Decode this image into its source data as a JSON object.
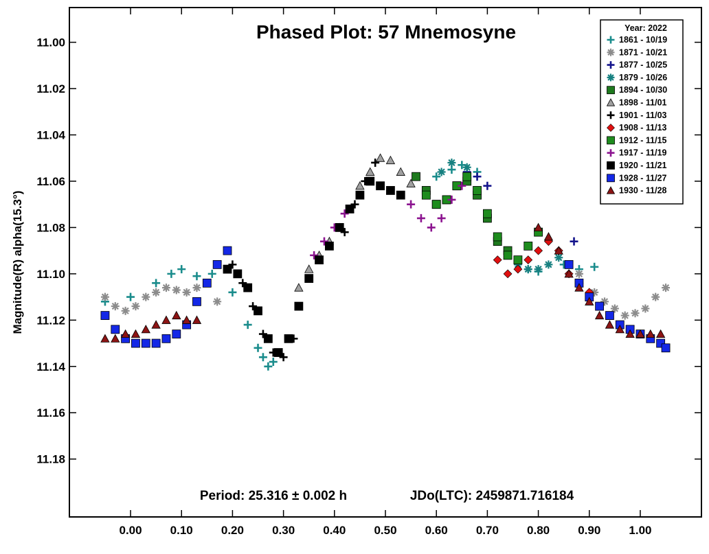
{
  "chart_data": {
    "type": "scatter",
    "title": "Phased Plot: 57 Mnemosyne",
    "ylabel": "Magnitude(R) alpha(15.3°)",
    "xlabel": "",
    "footer": {
      "period": "Period: 25.316 ± 0.002 h",
      "epoch": "JDo(LTC): 2459871.716184"
    },
    "xlim": [
      -0.12,
      1.12
    ],
    "ylim": [
      11.205,
      10.985
    ],
    "y_inverted": true,
    "x_ticks": [
      "0.00",
      "0.10",
      "0.20",
      "0.30",
      "0.40",
      "0.50",
      "0.60",
      "0.70",
      "0.80",
      "0.90",
      "1.00"
    ],
    "x_tick_values": [
      0,
      0.1,
      0.2,
      0.3,
      0.4,
      0.5,
      0.6,
      0.7,
      0.8,
      0.9,
      1.0
    ],
    "y_ticks": [
      "11.00",
      "11.02",
      "11.04",
      "11.06",
      "11.08",
      "11.10",
      "11.12",
      "11.14",
      "11.16",
      "11.18"
    ],
    "y_tick_values": [
      11.0,
      11.02,
      11.04,
      11.06,
      11.08,
      11.1,
      11.12,
      11.14,
      11.16,
      11.18
    ],
    "grid": false,
    "legend": {
      "placement": "top-right",
      "title": "Year: 2022"
    },
    "series": [
      {
        "name": "1861 - 10/19",
        "marker": "plus",
        "color": "#1a8c8c",
        "x": [
          -0.05,
          0.0,
          0.05,
          0.08,
          0.1,
          0.13,
          0.16,
          0.2,
          0.23,
          0.25,
          0.26,
          0.27,
          0.28,
          0.6,
          0.63,
          0.65,
          0.68,
          0.74,
          0.78,
          0.8,
          0.85,
          0.88,
          0.91
        ],
        "y": [
          11.112,
          11.11,
          11.104,
          11.1,
          11.098,
          11.101,
          11.1,
          11.108,
          11.122,
          11.132,
          11.136,
          11.14,
          11.138,
          11.058,
          11.055,
          11.053,
          11.056,
          11.09,
          11.098,
          11.099,
          11.096,
          11.098,
          11.097
        ]
      },
      {
        "name": "1871 - 10/21",
        "marker": "asterisk",
        "color": "#8c8c8c",
        "x": [
          -0.05,
          -0.03,
          -0.01,
          0.01,
          0.03,
          0.05,
          0.07,
          0.09,
          0.11,
          0.13,
          0.15,
          0.17,
          0.88,
          0.91,
          0.93,
          0.95,
          0.97,
          0.99,
          1.01,
          1.03,
          1.05
        ],
        "y": [
          11.11,
          11.114,
          11.116,
          11.114,
          11.11,
          11.108,
          11.106,
          11.107,
          11.108,
          11.106,
          11.104,
          11.112,
          11.1,
          11.108,
          11.112,
          11.115,
          11.118,
          11.117,
          11.115,
          11.11,
          11.106
        ]
      },
      {
        "name": "1877 - 10/25",
        "marker": "plus",
        "color": "#14148c",
        "x": [
          0.66,
          0.68,
          0.7,
          0.87
        ],
        "y": [
          11.056,
          11.058,
          11.062,
          11.086
        ]
      },
      {
        "name": "1879 - 10/26",
        "marker": "asterisk",
        "color": "#168080",
        "x": [
          0.61,
          0.63,
          0.66,
          0.76,
          0.78,
          0.8,
          0.82,
          0.84
        ],
        "y": [
          11.056,
          11.052,
          11.054,
          11.096,
          11.098,
          11.098,
          11.096,
          11.093
        ]
      },
      {
        "name": "1894 - 10/30",
        "marker": "square",
        "color": "#1e7a1e",
        "x": [
          0.56,
          0.58,
          0.6,
          0.62,
          0.64,
          0.66,
          0.68,
          0.7,
          0.72,
          0.74
        ],
        "y": [
          11.058,
          11.064,
          11.07,
          11.068,
          11.062,
          11.06,
          11.066,
          11.076,
          11.086,
          11.09
        ]
      },
      {
        "name": "1898 - 11/01",
        "marker": "triangle",
        "color": "#a0a0a0",
        "x": [
          0.33,
          0.35,
          0.37,
          0.39,
          0.41,
          0.43,
          0.45,
          0.47,
          0.49,
          0.51,
          0.53,
          0.55
        ],
        "y": [
          11.106,
          11.098,
          11.092,
          11.086,
          11.08,
          11.072,
          11.062,
          11.056,
          11.05,
          11.051,
          11.056,
          11.061
        ]
      },
      {
        "name": "1901 - 11/03",
        "marker": "plus",
        "color": "#000000",
        "x": [
          0.2,
          0.22,
          0.24,
          0.26,
          0.28,
          0.3,
          0.32,
          0.42,
          0.44,
          0.46,
          0.48
        ],
        "y": [
          11.096,
          11.104,
          11.114,
          11.126,
          11.134,
          11.136,
          11.128,
          11.082,
          11.07,
          11.06,
          11.052
        ]
      },
      {
        "name": "1908 - 11/13",
        "marker": "diamond",
        "color": "#e01010",
        "x": [
          0.72,
          0.74,
          0.76,
          0.78,
          0.8,
          0.82,
          0.84,
          0.86,
          0.88,
          0.9
        ],
        "y": [
          11.094,
          11.1,
          11.098,
          11.094,
          11.09,
          11.086,
          11.09,
          11.1,
          11.104,
          11.108
        ]
      },
      {
        "name": "1912 - 11/15",
        "marker": "square",
        "color": "#1e8c1e",
        "x": [
          0.58,
          0.6,
          0.62,
          0.64,
          0.66,
          0.68,
          0.7,
          0.72,
          0.74,
          0.76,
          0.78,
          0.8
        ],
        "y": [
          11.066,
          11.07,
          11.068,
          11.062,
          11.058,
          11.064,
          11.074,
          11.084,
          11.092,
          11.094,
          11.088,
          11.082
        ]
      },
      {
        "name": "1917 - 11/19",
        "marker": "plus",
        "color": "#8c1490",
        "x": [
          0.36,
          0.38,
          0.4,
          0.42,
          0.55,
          0.57,
          0.59,
          0.61,
          0.63,
          0.65
        ],
        "y": [
          11.092,
          11.086,
          11.08,
          11.074,
          11.07,
          11.076,
          11.08,
          11.076,
          11.068,
          11.062
        ]
      },
      {
        "name": "1920 - 11/21",
        "marker": "square",
        "color": "#000000",
        "x": [
          0.19,
          0.21,
          0.23,
          0.25,
          0.27,
          0.29,
          0.31,
          0.33,
          0.35,
          0.37,
          0.39,
          0.41,
          0.43,
          0.45,
          0.47,
          0.49,
          0.51,
          0.53
        ],
        "y": [
          11.098,
          11.1,
          11.106,
          11.116,
          11.128,
          11.134,
          11.128,
          11.114,
          11.102,
          11.094,
          11.088,
          11.08,
          11.072,
          11.066,
          11.06,
          11.062,
          11.064,
          11.066
        ]
      },
      {
        "name": "1928 - 11/27",
        "marker": "square",
        "color": "#1428e6",
        "x": [
          -0.05,
          -0.03,
          -0.01,
          0.01,
          0.03,
          0.05,
          0.07,
          0.09,
          0.11,
          0.13,
          0.15,
          0.17,
          0.19,
          0.86,
          0.88,
          0.9,
          0.92,
          0.94,
          0.96,
          0.98,
          1.0,
          1.02,
          1.04,
          1.05
        ],
        "y": [
          11.118,
          11.124,
          11.128,
          11.13,
          11.13,
          11.13,
          11.128,
          11.126,
          11.122,
          11.112,
          11.104,
          11.096,
          11.09,
          11.096,
          11.104,
          11.11,
          11.114,
          11.118,
          11.122,
          11.124,
          11.126,
          11.128,
          11.13,
          11.132
        ]
      },
      {
        "name": "1930 - 11/28",
        "marker": "triangle",
        "color": "#8c1414",
        "x": [
          -0.05,
          -0.03,
          -0.01,
          0.01,
          0.03,
          0.05,
          0.07,
          0.09,
          0.11,
          0.13,
          0.8,
          0.82,
          0.84,
          0.86,
          0.88,
          0.9,
          0.92,
          0.94,
          0.96,
          0.98,
          1.0,
          1.02,
          1.04
        ],
        "y": [
          11.128,
          11.128,
          11.126,
          11.126,
          11.124,
          11.122,
          11.12,
          11.118,
          11.12,
          11.12,
          11.08,
          11.084,
          11.09,
          11.1,
          11.106,
          11.112,
          11.118,
          11.122,
          11.124,
          11.126,
          11.126,
          11.126,
          11.126
        ]
      }
    ]
  }
}
